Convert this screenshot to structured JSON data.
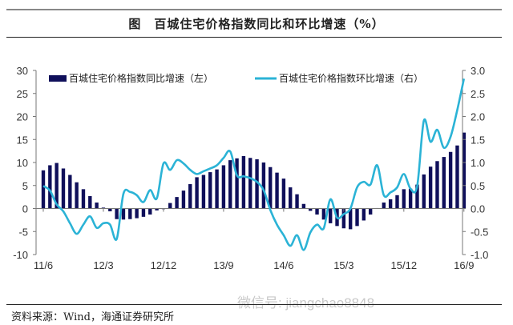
{
  "header": {
    "title": "图　百城住宅价格指数同比和环比增速（%）"
  },
  "footer": {
    "source": "资料来源：Wind，海通证券研究所",
    "watermark": "微信号: jiangchao8848"
  },
  "chart_data": {
    "type": "bar+line",
    "title": "图　百城住宅价格指数同比和环比增速（%）",
    "x_tick_labels": [
      "11/6",
      "12/3",
      "12/12",
      "13/9",
      "14/6",
      "15/3",
      "15/12",
      "16/9"
    ],
    "x_start": "2011-06",
    "x_end": "2016-09",
    "frequency": "monthly",
    "left_axis": {
      "ylim": [
        -10,
        30
      ],
      "ticks": [
        -10,
        -5,
        0,
        5,
        10,
        15,
        20,
        25,
        30
      ]
    },
    "right_axis": {
      "ylim": [
        -1.0,
        3.0
      ],
      "ticks": [
        "-1.0",
        "-0.5",
        "0.0",
        "0.5",
        "1.0",
        "1.5",
        "2.0",
        "2.5",
        "3.0"
      ]
    },
    "legend_position": "top",
    "series": [
      {
        "name": "百城住宅价格指数同比增速（左）",
        "type": "bar",
        "axis": "left",
        "color": "#0f0f5a",
        "values": [
          8.3,
          9.4,
          9.9,
          8.7,
          7.3,
          5.7,
          4.2,
          2.7,
          1.3,
          0.2,
          -0.6,
          -2.3,
          -2.4,
          -2.3,
          -2.1,
          -1.8,
          -1.3,
          -0.4,
          0.0,
          1.2,
          2.5,
          3.9,
          5.3,
          6.8,
          7.3,
          7.9,
          8.5,
          9.4,
          10.5,
          10.9,
          11.4,
          11.0,
          10.7,
          10.0,
          9.0,
          7.8,
          6.5,
          4.6,
          3.1,
          1.0,
          -0.5,
          -1.3,
          -2.4,
          -3.2,
          -3.8,
          -4.3,
          -4.5,
          -3.8,
          -2.6,
          -1.3,
          0.1,
          1.3,
          2.0,
          2.9,
          4.2,
          4.3,
          5.2,
          7.4,
          9.1,
          10.3,
          11.2,
          12.3,
          13.7,
          16.5
        ]
      },
      {
        "name": "百城住宅价格指数环比增速（右）",
        "type": "line",
        "axis": "right",
        "color": "#2bb3d6",
        "values": [
          0.49,
          0.39,
          0.09,
          -0.06,
          -0.32,
          -0.55,
          -0.35,
          -0.17,
          -0.42,
          -0.32,
          -0.35,
          -0.66,
          0.32,
          0.36,
          0.29,
          0.14,
          0.4,
          0.22,
          0.98,
          0.84,
          1.05,
          0.98,
          0.84,
          0.75,
          0.81,
          0.87,
          0.94,
          1.1,
          1.24,
          0.72,
          0.7,
          0.66,
          0.58,
          0.4,
          -0.03,
          -0.35,
          -0.58,
          -0.81,
          -0.58,
          -0.9,
          -0.52,
          -0.35,
          -0.43,
          0.2,
          -0.2,
          -0.12,
          0.0,
          0.46,
          0.58,
          0.52,
          0.94,
          0.29,
          0.35,
          0.46,
          0.75,
          0.43,
          0.49,
          1.91,
          1.45,
          1.71,
          1.32,
          1.56,
          2.14,
          2.82
        ]
      }
    ]
  }
}
